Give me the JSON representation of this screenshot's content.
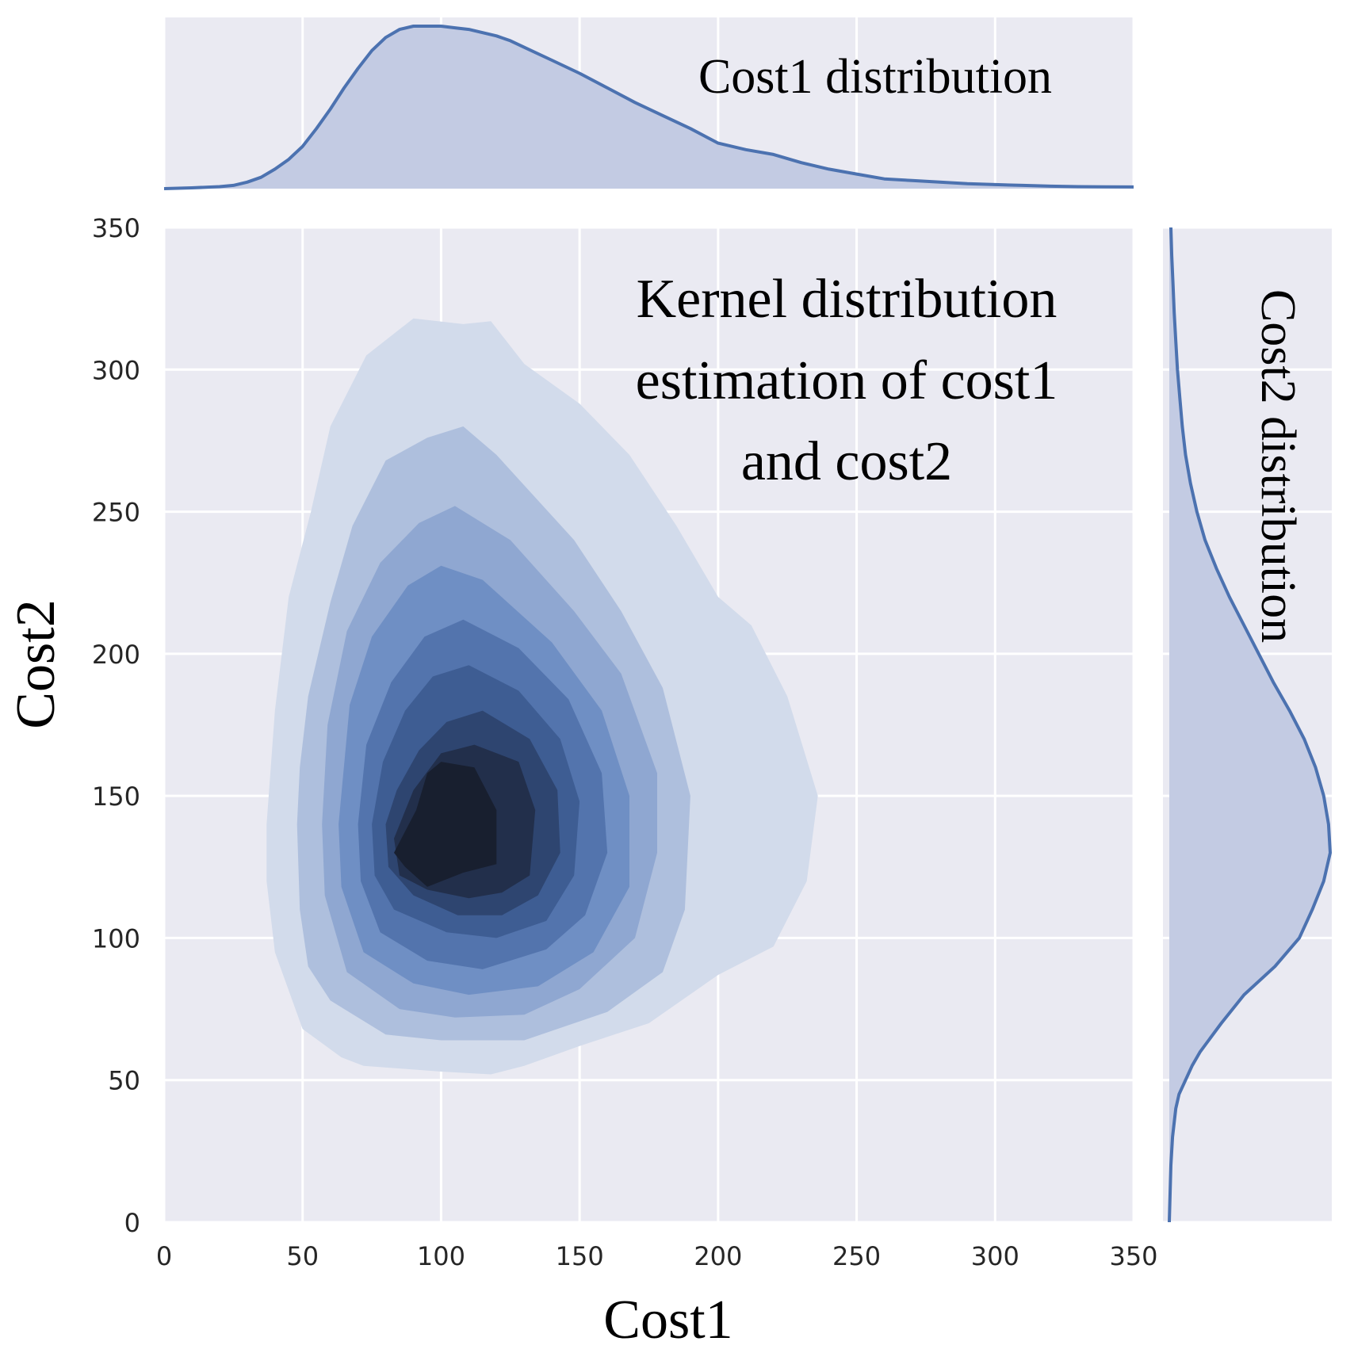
{
  "chart_data": {
    "type": "kde-joint",
    "title": "",
    "xlabel": "Cost1",
    "ylabel": "Cost2",
    "xlim": [
      0,
      350
    ],
    "ylim": [
      0,
      350
    ],
    "xticks": [
      0,
      50,
      100,
      150,
      200,
      250,
      300,
      350
    ],
    "yticks": [
      0,
      50,
      100,
      150,
      200,
      250,
      300,
      350
    ],
    "grid": true,
    "annotations": {
      "main": [
        "Kernel distribution",
        "estimation of cost1",
        "and cost2"
      ],
      "top": "Cost1 distribution",
      "right": "Cost2 distribution"
    },
    "colors": {
      "background": "#eaeaf2",
      "grid": "#ffffff",
      "line": "#4c72b0",
      "fill": "#c3cbe3",
      "levels": [
        "#d2dbeb",
        "#aebfdd",
        "#8fa7d1",
        "#6f8fc4",
        "#5374ad",
        "#3e5d93",
        "#2e4570",
        "#222f4b",
        "#181f2f"
      ]
    },
    "contours": [
      {
        "level": 1,
        "points": [
          [
            37,
            140
          ],
          [
            37,
            120
          ],
          [
            40,
            95
          ],
          [
            50,
            68
          ],
          [
            64,
            58
          ],
          [
            72,
            55
          ],
          [
            100,
            53
          ],
          [
            118,
            52
          ],
          [
            130,
            55
          ],
          [
            150,
            62
          ],
          [
            175,
            70
          ],
          [
            200,
            87
          ],
          [
            220,
            97
          ],
          [
            232,
            120
          ],
          [
            236,
            150
          ],
          [
            225,
            185
          ],
          [
            212,
            210
          ],
          [
            200,
            220
          ],
          [
            185,
            245
          ],
          [
            168,
            270
          ],
          [
            150,
            288
          ],
          [
            130,
            302
          ],
          [
            118,
            317
          ],
          [
            108,
            316
          ],
          [
            90,
            318
          ],
          [
            73,
            305
          ],
          [
            60,
            280
          ],
          [
            53,
            250
          ],
          [
            45,
            220
          ],
          [
            40,
            180
          ]
        ]
      },
      {
        "level": 2,
        "points": [
          [
            48,
            140
          ],
          [
            49,
            110
          ],
          [
            52,
            90
          ],
          [
            60,
            78
          ],
          [
            80,
            66
          ],
          [
            100,
            64
          ],
          [
            130,
            64
          ],
          [
            160,
            74
          ],
          [
            180,
            88
          ],
          [
            188,
            110
          ],
          [
            190,
            150
          ],
          [
            180,
            188
          ],
          [
            165,
            215
          ],
          [
            148,
            240
          ],
          [
            120,
            270
          ],
          [
            108,
            280
          ],
          [
            95,
            276
          ],
          [
            80,
            268
          ],
          [
            68,
            245
          ],
          [
            60,
            218
          ],
          [
            52,
            185
          ],
          [
            49,
            160
          ]
        ]
      },
      {
        "level": 3,
        "points": [
          [
            57,
            140
          ],
          [
            58,
            115
          ],
          [
            66,
            88
          ],
          [
            85,
            75
          ],
          [
            105,
            72
          ],
          [
            130,
            73
          ],
          [
            150,
            82
          ],
          [
            170,
            100
          ],
          [
            178,
            130
          ],
          [
            178,
            158
          ],
          [
            165,
            193
          ],
          [
            148,
            215
          ],
          [
            125,
            240
          ],
          [
            105,
            252
          ],
          [
            92,
            246
          ],
          [
            78,
            232
          ],
          [
            66,
            208
          ],
          [
            59,
            175
          ]
        ]
      },
      {
        "level": 4,
        "points": [
          [
            63,
            140
          ],
          [
            64,
            118
          ],
          [
            72,
            95
          ],
          [
            90,
            84
          ],
          [
            110,
            80
          ],
          [
            135,
            83
          ],
          [
            155,
            95
          ],
          [
            168,
            118
          ],
          [
            168,
            150
          ],
          [
            158,
            180
          ],
          [
            140,
            204
          ],
          [
            115,
            226
          ],
          [
            100,
            231
          ],
          [
            88,
            224
          ],
          [
            75,
            206
          ],
          [
            67,
            182
          ]
        ]
      },
      {
        "level": 5,
        "points": [
          [
            70,
            140
          ],
          [
            71,
            120
          ],
          [
            78,
            102
          ],
          [
            95,
            92
          ],
          [
            115,
            89
          ],
          [
            138,
            96
          ],
          [
            152,
            108
          ],
          [
            160,
            130
          ],
          [
            158,
            158
          ],
          [
            146,
            184
          ],
          [
            128,
            202
          ],
          [
            108,
            212
          ],
          [
            94,
            206
          ],
          [
            82,
            190
          ],
          [
            73,
            168
          ]
        ]
      },
      {
        "level": 6,
        "points": [
          [
            75,
            140
          ],
          [
            76,
            122
          ],
          [
            83,
            110
          ],
          [
            102,
            102
          ],
          [
            120,
            100
          ],
          [
            138,
            106
          ],
          [
            148,
            122
          ],
          [
            150,
            148
          ],
          [
            143,
            170
          ],
          [
            128,
            187
          ],
          [
            110,
            196
          ],
          [
            97,
            192
          ],
          [
            87,
            180
          ],
          [
            79,
            162
          ]
        ]
      },
      {
        "level": 7,
        "points": [
          [
            80,
            140
          ],
          [
            81,
            125
          ],
          [
            90,
            115
          ],
          [
            106,
            108
          ],
          [
            122,
            108
          ],
          [
            135,
            115
          ],
          [
            143,
            130
          ],
          [
            142,
            152
          ],
          [
            132,
            170
          ],
          [
            115,
            180
          ],
          [
            102,
            176
          ],
          [
            92,
            166
          ],
          [
            84,
            152
          ]
        ]
      },
      {
        "level": 8,
        "points": [
          [
            83,
            135
          ],
          [
            85,
            122
          ],
          [
            95,
            117
          ],
          [
            110,
            114
          ],
          [
            122,
            116
          ],
          [
            132,
            122
          ],
          [
            134,
            145
          ],
          [
            128,
            162
          ],
          [
            112,
            168
          ],
          [
            100,
            165
          ],
          [
            90,
            152
          ]
        ]
      },
      {
        "level": 9,
        "points": [
          [
            83,
            130
          ],
          [
            87,
            125
          ],
          [
            95,
            118
          ],
          [
            108,
            123
          ],
          [
            120,
            126
          ],
          [
            120,
            145
          ],
          [
            112,
            160
          ],
          [
            100,
            162
          ],
          [
            95,
            158
          ],
          [
            91,
            145
          ]
        ]
      }
    ],
    "cost1_marginal": {
      "x": [
        0,
        10,
        20,
        25,
        30,
        35,
        40,
        45,
        50,
        55,
        60,
        65,
        70,
        75,
        80,
        85,
        90,
        95,
        100,
        105,
        110,
        115,
        120,
        125,
        130,
        140,
        150,
        160,
        170,
        180,
        190,
        200,
        210,
        220,
        230,
        240,
        250,
        260,
        270,
        280,
        290,
        300,
        310,
        320,
        330,
        340,
        350
      ],
      "density": [
        0,
        0.005,
        0.012,
        0.02,
        0.04,
        0.07,
        0.12,
        0.18,
        0.26,
        0.37,
        0.49,
        0.62,
        0.74,
        0.85,
        0.93,
        0.98,
        1.0,
        1.0,
        1.0,
        0.99,
        0.98,
        0.96,
        0.94,
        0.91,
        0.87,
        0.79,
        0.71,
        0.62,
        0.53,
        0.45,
        0.37,
        0.28,
        0.24,
        0.21,
        0.16,
        0.12,
        0.09,
        0.06,
        0.05,
        0.04,
        0.03,
        0.025,
        0.02,
        0.015,
        0.012,
        0.011,
        0.01
      ]
    },
    "cost2_marginal": {
      "y": [
        0,
        20,
        30,
        40,
        45,
        50,
        55,
        60,
        70,
        80,
        90,
        100,
        110,
        120,
        130,
        140,
        150,
        160,
        170,
        180,
        190,
        200,
        210,
        220,
        230,
        240,
        250,
        260,
        270,
        280,
        290,
        300,
        310,
        320,
        330,
        340,
        350
      ],
      "density": [
        0.0,
        0.01,
        0.02,
        0.04,
        0.06,
        0.1,
        0.14,
        0.19,
        0.32,
        0.46,
        0.65,
        0.8,
        0.88,
        0.95,
        0.99,
        0.98,
        0.95,
        0.9,
        0.83,
        0.74,
        0.64,
        0.55,
        0.46,
        0.37,
        0.29,
        0.22,
        0.17,
        0.13,
        0.1,
        0.08,
        0.065,
        0.05,
        0.04,
        0.03,
        0.023,
        0.015,
        0.01
      ]
    }
  }
}
